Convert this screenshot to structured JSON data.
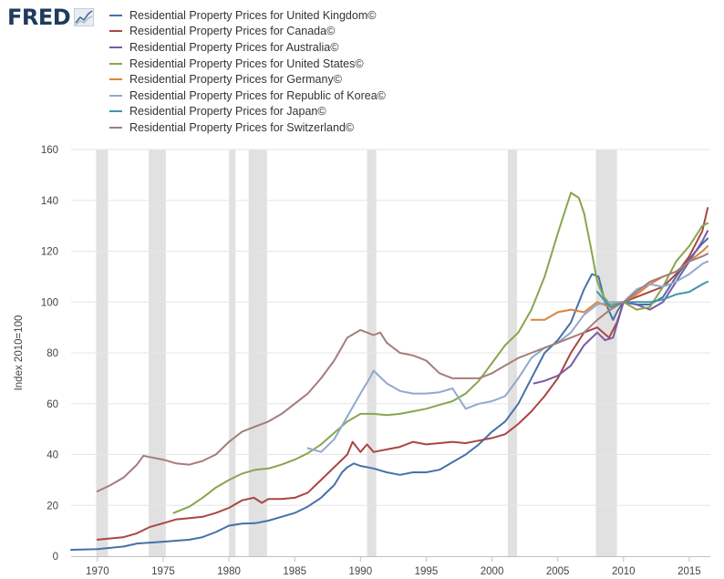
{
  "logo": {
    "text": "FRED",
    "icon": "fred-logo-chart-icon"
  },
  "chart_data": {
    "type": "line",
    "ylabel": "Index 2010=100",
    "xlabel": "",
    "xlim": [
      1968,
      2016.6
    ],
    "ylim": [
      0,
      160
    ],
    "x_ticks": [
      "1970",
      "1975",
      "1980",
      "1985",
      "1990",
      "1995",
      "2000",
      "2005",
      "2010",
      "2015"
    ],
    "y_ticks": [
      "0",
      "20",
      "40",
      "60",
      "80",
      "100",
      "120",
      "140",
      "160"
    ],
    "recessions": [
      [
        1969.9,
        1970.8
      ],
      [
        1973.9,
        1975.2
      ],
      [
        1980.0,
        1980.5
      ],
      [
        1981.5,
        1982.9
      ],
      [
        1990.5,
        1991.2
      ],
      [
        2001.2,
        2001.9
      ],
      [
        2007.9,
        2009.5
      ]
    ],
    "series": [
      {
        "name": "Residential Property Prices for United Kingdom©",
        "color": "#4572a7",
        "points": [
          [
            1968,
            2.5
          ],
          [
            1970,
            2.8
          ],
          [
            1972,
            3.8
          ],
          [
            1973,
            5
          ],
          [
            1975,
            5.7
          ],
          [
            1977,
            6.5
          ],
          [
            1978,
            7.5
          ],
          [
            1979,
            9.5
          ],
          [
            1980,
            12
          ],
          [
            1981,
            12.8
          ],
          [
            1982,
            13
          ],
          [
            1983,
            14
          ],
          [
            1984,
            15.5
          ],
          [
            1985,
            17
          ],
          [
            1986,
            19.5
          ],
          [
            1987,
            23
          ],
          [
            1988,
            28
          ],
          [
            1988.6,
            33
          ],
          [
            1989,
            35
          ],
          [
            1989.5,
            36.5
          ],
          [
            1990,
            35.5
          ],
          [
            1991,
            34.5
          ],
          [
            1992,
            33
          ],
          [
            1993,
            32
          ],
          [
            1994,
            33
          ],
          [
            1995,
            33
          ],
          [
            1996,
            34
          ],
          [
            1997,
            37
          ],
          [
            1998,
            40
          ],
          [
            1999,
            44
          ],
          [
            2000,
            49
          ],
          [
            2001,
            53
          ],
          [
            2002,
            60
          ],
          [
            2003,
            70
          ],
          [
            2004,
            80
          ],
          [
            2005,
            85
          ],
          [
            2006,
            92
          ],
          [
            2007,
            105
          ],
          [
            2007.6,
            111
          ],
          [
            2008.1,
            110
          ],
          [
            2008.6,
            100
          ],
          [
            2009.2,
            93
          ],
          [
            2009.6,
            97
          ],
          [
            2010,
            100
          ],
          [
            2011,
            99
          ],
          [
            2012,
            99
          ],
          [
            2013,
            102
          ],
          [
            2014,
            110
          ],
          [
            2015,
            117
          ],
          [
            2016,
            123
          ],
          [
            2016.4,
            125
          ]
        ]
      },
      {
        "name": "Residential Property Prices for Canada©",
        "color": "#aa4643",
        "points": [
          [
            1970,
            6.5
          ],
          [
            1971,
            7
          ],
          [
            1972,
            7.5
          ],
          [
            1973,
            9
          ],
          [
            1974,
            11.5
          ],
          [
            1975,
            13
          ],
          [
            1976,
            14.5
          ],
          [
            1977,
            15
          ],
          [
            1978,
            15.5
          ],
          [
            1979,
            17
          ],
          [
            1980,
            19
          ],
          [
            1981,
            22
          ],
          [
            1981.9,
            23
          ],
          [
            1982.5,
            21
          ],
          [
            1983,
            22.5
          ],
          [
            1984,
            22.5
          ],
          [
            1985,
            23
          ],
          [
            1986,
            25
          ],
          [
            1987,
            30
          ],
          [
            1988,
            35
          ],
          [
            1989,
            40
          ],
          [
            1989.4,
            45
          ],
          [
            1990,
            41
          ],
          [
            1990.5,
            44
          ],
          [
            1991,
            41
          ],
          [
            1992,
            42
          ],
          [
            1993,
            43
          ],
          [
            1994,
            45
          ],
          [
            1995,
            44
          ],
          [
            1996,
            44.5
          ],
          [
            1997,
            45
          ],
          [
            1998,
            44.5
          ],
          [
            1999,
            45.5
          ],
          [
            2000,
            46.5
          ],
          [
            2001,
            48
          ],
          [
            2002,
            52
          ],
          [
            2003,
            57
          ],
          [
            2004,
            63
          ],
          [
            2005,
            70
          ],
          [
            2006,
            80
          ],
          [
            2007,
            88
          ],
          [
            2008,
            90
          ],
          [
            2008.9,
            86
          ],
          [
            2009.5,
            92
          ],
          [
            2010,
            100
          ],
          [
            2011,
            102
          ],
          [
            2012,
            104
          ],
          [
            2013,
            106
          ],
          [
            2014,
            111
          ],
          [
            2015,
            118
          ],
          [
            2016,
            128
          ],
          [
            2016.4,
            137
          ]
        ]
      },
      {
        "name": "Residential Property Prices for Australia©",
        "color": "#7a5ba5",
        "points": [
          [
            2003.2,
            68
          ],
          [
            2004,
            69
          ],
          [
            2005,
            71
          ],
          [
            2006,
            75
          ],
          [
            2007,
            83
          ],
          [
            2008,
            88
          ],
          [
            2008.6,
            85
          ],
          [
            2009.2,
            86
          ],
          [
            2010,
            100
          ],
          [
            2011,
            99
          ],
          [
            2012,
            97
          ],
          [
            2013,
            100
          ],
          [
            2014,
            108
          ],
          [
            2015,
            116
          ],
          [
            2016,
            124
          ],
          [
            2016.4,
            128
          ]
        ]
      },
      {
        "name": "Residential Property Prices for United States©",
        "color": "#89a54e",
        "points": [
          [
            1975.8,
            17
          ],
          [
            1977,
            19.5
          ],
          [
            1978,
            23
          ],
          [
            1979,
            27
          ],
          [
            1980,
            30
          ],
          [
            1981,
            32.5
          ],
          [
            1982,
            34
          ],
          [
            1983,
            34.5
          ],
          [
            1984,
            36
          ],
          [
            1985,
            38
          ],
          [
            1986,
            40.5
          ],
          [
            1987,
            44
          ],
          [
            1988,
            48.5
          ],
          [
            1989,
            53
          ],
          [
            1990,
            56
          ],
          [
            1991,
            56
          ],
          [
            1992,
            55.5
          ],
          [
            1993,
            56
          ],
          [
            1994,
            57
          ],
          [
            1995,
            58
          ],
          [
            1996,
            59.5
          ],
          [
            1997,
            61
          ],
          [
            1998,
            64
          ],
          [
            1999,
            69
          ],
          [
            2000,
            76
          ],
          [
            2001,
            83
          ],
          [
            2002,
            88
          ],
          [
            2003,
            97
          ],
          [
            2004,
            110
          ],
          [
            2005,
            127
          ],
          [
            2006,
            143
          ],
          [
            2006.6,
            141
          ],
          [
            2007,
            135
          ],
          [
            2007.5,
            122
          ],
          [
            2008,
            108
          ],
          [
            2008.5,
            102
          ],
          [
            2009,
            99
          ],
          [
            2010,
            100
          ],
          [
            2011,
            97
          ],
          [
            2012,
            98
          ],
          [
            2013,
            106
          ],
          [
            2014,
            116
          ],
          [
            2015,
            122
          ],
          [
            2016,
            130
          ],
          [
            2016.4,
            131
          ]
        ]
      },
      {
        "name": "Residential Property Prices for Germany©",
        "color": "#db843d",
        "points": [
          [
            2003,
            93
          ],
          [
            2004,
            93
          ],
          [
            2005,
            96
          ],
          [
            2006,
            97
          ],
          [
            2007,
            96
          ],
          [
            2008,
            100
          ],
          [
            2009,
            98
          ],
          [
            2010,
            100
          ],
          [
            2011,
            103
          ],
          [
            2012,
            107
          ],
          [
            2013,
            110
          ],
          [
            2014,
            112
          ],
          [
            2015,
            116
          ],
          [
            2016,
            120
          ],
          [
            2016.4,
            122
          ]
        ]
      },
      {
        "name": "Residential Property Prices for Republic of Korea©",
        "color": "#92a8cd",
        "points": [
          [
            1986,
            42.5
          ],
          [
            1987,
            41
          ],
          [
            1988,
            46
          ],
          [
            1989,
            55
          ],
          [
            1990,
            64
          ],
          [
            1990.7,
            70
          ],
          [
            1991,
            73
          ],
          [
            1992,
            68
          ],
          [
            1993,
            65
          ],
          [
            1994,
            64
          ],
          [
            1995,
            64
          ],
          [
            1996,
            64.5
          ],
          [
            1997,
            66
          ],
          [
            1998,
            58
          ],
          [
            1999,
            60
          ],
          [
            2000,
            61
          ],
          [
            2001,
            63
          ],
          [
            2002,
            70
          ],
          [
            2003,
            78
          ],
          [
            2004,
            82
          ],
          [
            2005,
            84
          ],
          [
            2006,
            88
          ],
          [
            2007,
            95
          ],
          [
            2008,
            99
          ],
          [
            2009,
            100
          ],
          [
            2010,
            100
          ],
          [
            2011,
            105
          ],
          [
            2012,
            107
          ],
          [
            2013,
            106
          ],
          [
            2014,
            108
          ],
          [
            2015,
            111
          ],
          [
            2016,
            115
          ],
          [
            2016.4,
            116
          ]
        ]
      },
      {
        "name": "Residential Property Prices for Japan©",
        "color": "#3d96ae",
        "points": [
          [
            2008,
            104
          ],
          [
            2008.5,
            101
          ],
          [
            2009,
            98
          ],
          [
            2010,
            100
          ],
          [
            2011,
            100
          ],
          [
            2012,
            100
          ],
          [
            2013,
            101
          ],
          [
            2014,
            103
          ],
          [
            2015,
            104
          ],
          [
            2016,
            107
          ],
          [
            2016.4,
            108
          ]
        ]
      },
      {
        "name": "Residential Property Prices for Switzerland©",
        "color": "#a47d7c",
        "points": [
          [
            1970,
            25.5
          ],
          [
            1971,
            28
          ],
          [
            1972,
            31
          ],
          [
            1973,
            36
          ],
          [
            1973.5,
            39.5
          ],
          [
            1974,
            39
          ],
          [
            1975,
            38
          ],
          [
            1976,
            36.5
          ],
          [
            1977,
            36
          ],
          [
            1978,
            37.5
          ],
          [
            1979,
            40
          ],
          [
            1980,
            45
          ],
          [
            1981,
            49
          ],
          [
            1982,
            51
          ],
          [
            1983,
            53
          ],
          [
            1984,
            56
          ],
          [
            1985,
            60
          ],
          [
            1986,
            64
          ],
          [
            1987,
            70
          ],
          [
            1988,
            77
          ],
          [
            1989,
            86
          ],
          [
            1990,
            89
          ],
          [
            1991,
            87
          ],
          [
            1991.5,
            88
          ],
          [
            1992,
            84
          ],
          [
            1993,
            80
          ],
          [
            1994,
            79
          ],
          [
            1995,
            77
          ],
          [
            1996,
            72
          ],
          [
            1997,
            70
          ],
          [
            1998,
            70
          ],
          [
            1999,
            70
          ],
          [
            2000,
            72
          ],
          [
            2001,
            75
          ],
          [
            2002,
            78
          ],
          [
            2003,
            80
          ],
          [
            2004,
            82
          ],
          [
            2005,
            84
          ],
          [
            2006,
            86
          ],
          [
            2007,
            88
          ],
          [
            2008,
            93
          ],
          [
            2009,
            97
          ],
          [
            2010,
            100
          ],
          [
            2011,
            104
          ],
          [
            2012,
            108
          ],
          [
            2013,
            110
          ],
          [
            2014,
            112
          ],
          [
            2015,
            116
          ],
          [
            2016,
            118
          ],
          [
            2016.4,
            119
          ]
        ]
      }
    ]
  }
}
